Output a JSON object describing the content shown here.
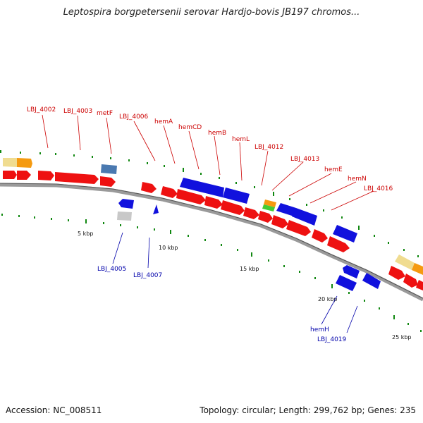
{
  "title": "Leptospira borgpetersenii serovar Hardjo-bovis JB197 chromos...",
  "footer": {
    "accession": "Accession: NC_008511",
    "summary": "Topology: circular; Length: 299,762 bp; Genes: 235"
  },
  "colors": {
    "forward_gene": "#ee1111",
    "reverse_gene": "#1111dd",
    "label_forward": "#cc0000",
    "label_reverse": "#0000aa",
    "backbone": "#777777",
    "tick_mark": "#118811"
  },
  "scale_labels": [
    "5 kbp",
    "10 kbp",
    "15 kbp",
    "20 kbp",
    "25 kbp"
  ],
  "forward_labels": [
    "LBJ_4002",
    "LBJ_4003",
    "metF",
    "LBJ_4006",
    "hemA",
    "hemCD",
    "hemB",
    "hemL",
    "LBJ_4012",
    "LBJ_4013",
    "hemE",
    "hemN",
    "LBJ_4016"
  ],
  "reverse_labels": [
    "LBJ_4005",
    "LBJ_4007",
    "hemH",
    "LBJ_4019"
  ]
}
